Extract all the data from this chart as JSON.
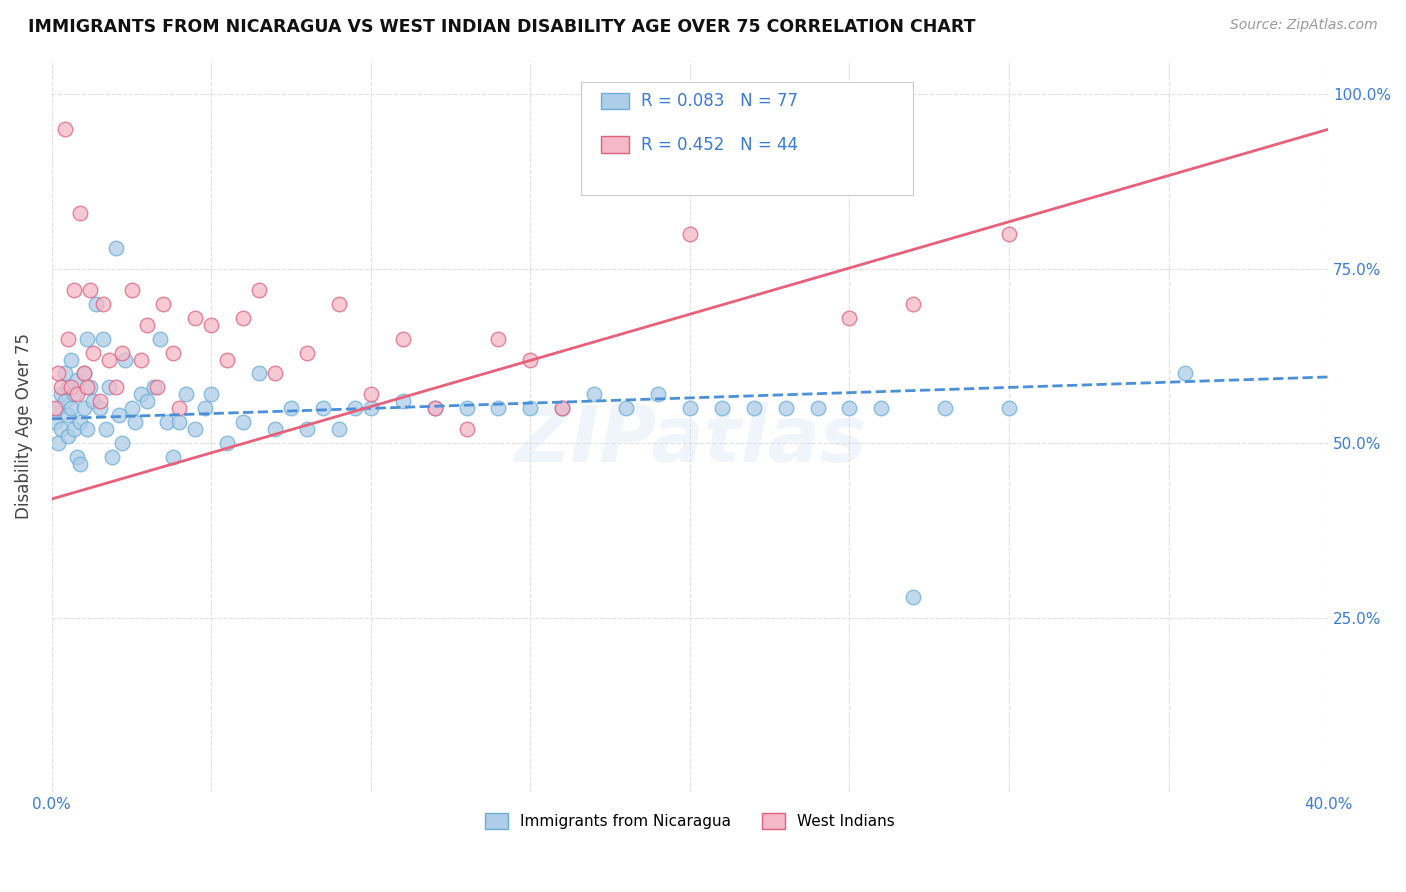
{
  "title": "IMMIGRANTS FROM NICARAGUA VS WEST INDIAN DISABILITY AGE OVER 75 CORRELATION CHART",
  "source": "Source: ZipAtlas.com",
  "ylabel": "Disability Age Over 75",
  "x_min": 0.0,
  "x_max": 0.4,
  "y_min": 0.0,
  "y_max": 1.05,
  "x_ticks": [
    0.0,
    0.05,
    0.1,
    0.15,
    0.2,
    0.25,
    0.3,
    0.35,
    0.4
  ],
  "y_ticks": [
    0.0,
    0.25,
    0.5,
    0.75,
    1.0
  ],
  "y_tick_labels_right": [
    "",
    "25.0%",
    "50.0%",
    "75.0%",
    "100.0%"
  ],
  "nicaragua_color": "#aecde8",
  "nicaragua_edge": "#6baed6",
  "west_indian_color": "#f4b8c8",
  "west_indian_edge": "#e06080",
  "trend_nicaragua_color": "#4a90d9",
  "trend_west_indian_color": "#e8607a",
  "legend_r_nicaragua": "0.083",
  "legend_n_nicaragua": "77",
  "legend_r_west_indian": "0.452",
  "legend_n_west_indian": "44",
  "text_color_blue": "#3a7bd5",
  "watermark": "ZIPatlas",
  "nicaragua_x": [
    0.001,
    0.002,
    0.002,
    0.003,
    0.003,
    0.004,
    0.004,
    0.005,
    0.005,
    0.005,
    0.006,
    0.006,
    0.007,
    0.007,
    0.008,
    0.008,
    0.009,
    0.009,
    0.01,
    0.01,
    0.011,
    0.011,
    0.012,
    0.013,
    0.014,
    0.015,
    0.016,
    0.017,
    0.018,
    0.019,
    0.02,
    0.021,
    0.022,
    0.023,
    0.025,
    0.026,
    0.028,
    0.03,
    0.032,
    0.034,
    0.036,
    0.038,
    0.04,
    0.042,
    0.045,
    0.048,
    0.05,
    0.055,
    0.06,
    0.065,
    0.07,
    0.075,
    0.08,
    0.085,
    0.09,
    0.095,
    0.1,
    0.11,
    0.12,
    0.13,
    0.14,
    0.15,
    0.16,
    0.17,
    0.18,
    0.19,
    0.2,
    0.21,
    0.22,
    0.23,
    0.24,
    0.25,
    0.26,
    0.27,
    0.28,
    0.3,
    0.355
  ],
  "nicaragua_y": [
    0.53,
    0.55,
    0.5,
    0.57,
    0.52,
    0.56,
    0.6,
    0.54,
    0.58,
    0.51,
    0.55,
    0.62,
    0.52,
    0.57,
    0.48,
    0.59,
    0.53,
    0.47,
    0.6,
    0.55,
    0.65,
    0.52,
    0.58,
    0.56,
    0.7,
    0.55,
    0.65,
    0.52,
    0.58,
    0.48,
    0.78,
    0.54,
    0.5,
    0.62,
    0.55,
    0.53,
    0.57,
    0.56,
    0.58,
    0.65,
    0.53,
    0.48,
    0.53,
    0.57,
    0.52,
    0.55,
    0.57,
    0.5,
    0.53,
    0.6,
    0.52,
    0.55,
    0.52,
    0.55,
    0.52,
    0.55,
    0.55,
    0.56,
    0.55,
    0.55,
    0.55,
    0.55,
    0.55,
    0.57,
    0.55,
    0.57,
    0.55,
    0.55,
    0.55,
    0.55,
    0.55,
    0.55,
    0.55,
    0.28,
    0.55,
    0.55,
    0.6
  ],
  "west_indian_x": [
    0.001,
    0.002,
    0.003,
    0.004,
    0.005,
    0.006,
    0.007,
    0.008,
    0.009,
    0.01,
    0.011,
    0.012,
    0.013,
    0.015,
    0.016,
    0.018,
    0.02,
    0.022,
    0.025,
    0.028,
    0.03,
    0.033,
    0.035,
    0.038,
    0.04,
    0.045,
    0.05,
    0.055,
    0.06,
    0.065,
    0.07,
    0.08,
    0.09,
    0.1,
    0.11,
    0.12,
    0.13,
    0.14,
    0.15,
    0.16,
    0.2,
    0.25,
    0.27,
    0.3
  ],
  "west_indian_y": [
    0.55,
    0.6,
    0.58,
    0.95,
    0.65,
    0.58,
    0.72,
    0.57,
    0.83,
    0.6,
    0.58,
    0.72,
    0.63,
    0.56,
    0.7,
    0.62,
    0.58,
    0.63,
    0.72,
    0.62,
    0.67,
    0.58,
    0.7,
    0.63,
    0.55,
    0.68,
    0.67,
    0.62,
    0.68,
    0.72,
    0.6,
    0.63,
    0.7,
    0.57,
    0.65,
    0.55,
    0.52,
    0.65,
    0.62,
    0.55,
    0.8,
    0.68,
    0.7,
    0.8
  ],
  "background_color": "#ffffff",
  "grid_color": "#e0e0e0",
  "trend_nic_x0": 0.0,
  "trend_nic_x1": 0.4,
  "trend_nic_y0": 0.535,
  "trend_nic_y1": 0.595,
  "trend_wi_x0": 0.0,
  "trend_wi_x1": 0.4,
  "trend_wi_y0": 0.42,
  "trend_wi_y1": 0.95
}
